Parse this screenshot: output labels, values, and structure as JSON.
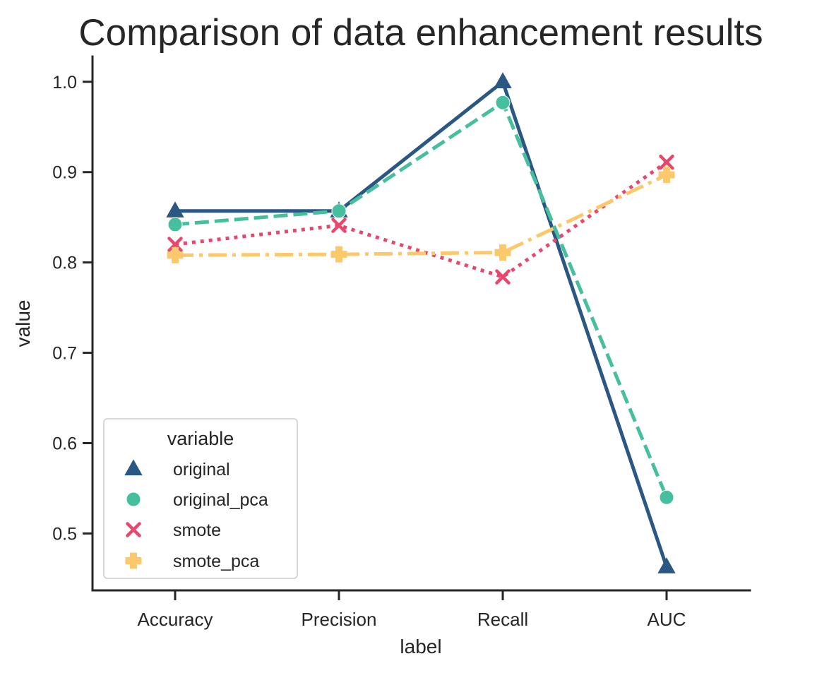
{
  "chart_data": {
    "type": "line",
    "title": "Comparison of data enhancement results",
    "xlabel": "label",
    "ylabel": "value",
    "categories": [
      "Accuracy",
      "Precision",
      "Recall",
      "AUC"
    ],
    "ylim": [
      0.437,
      1.028
    ],
    "yticks": [
      0.5,
      0.6,
      0.7,
      0.8,
      0.9,
      1.0
    ],
    "ytick_labels": [
      "0.5",
      "0.6",
      "0.7",
      "0.8",
      "0.9",
      "1.0"
    ],
    "grid": false,
    "legend": {
      "title": "variable",
      "placement": "lower-left"
    },
    "series": [
      {
        "name": "original",
        "values": [
          0.857,
          0.857,
          1.0,
          0.463
        ],
        "color": "#2a5783",
        "marker": "triangle",
        "linestyle": "solid"
      },
      {
        "name": "original_pca",
        "values": [
          0.842,
          0.857,
          0.977,
          0.54
        ],
        "color": "#45bf9d",
        "marker": "circle",
        "linestyle": "dashed"
      },
      {
        "name": "smote",
        "values": [
          0.82,
          0.841,
          0.784,
          0.911
        ],
        "color": "#e8466d",
        "marker": "x",
        "linestyle": "dotted"
      },
      {
        "name": "smote_pca",
        "values": [
          0.808,
          0.809,
          0.811,
          0.897
        ],
        "color": "#fbc96b",
        "marker": "plus",
        "linestyle": "dashdot"
      }
    ]
  }
}
